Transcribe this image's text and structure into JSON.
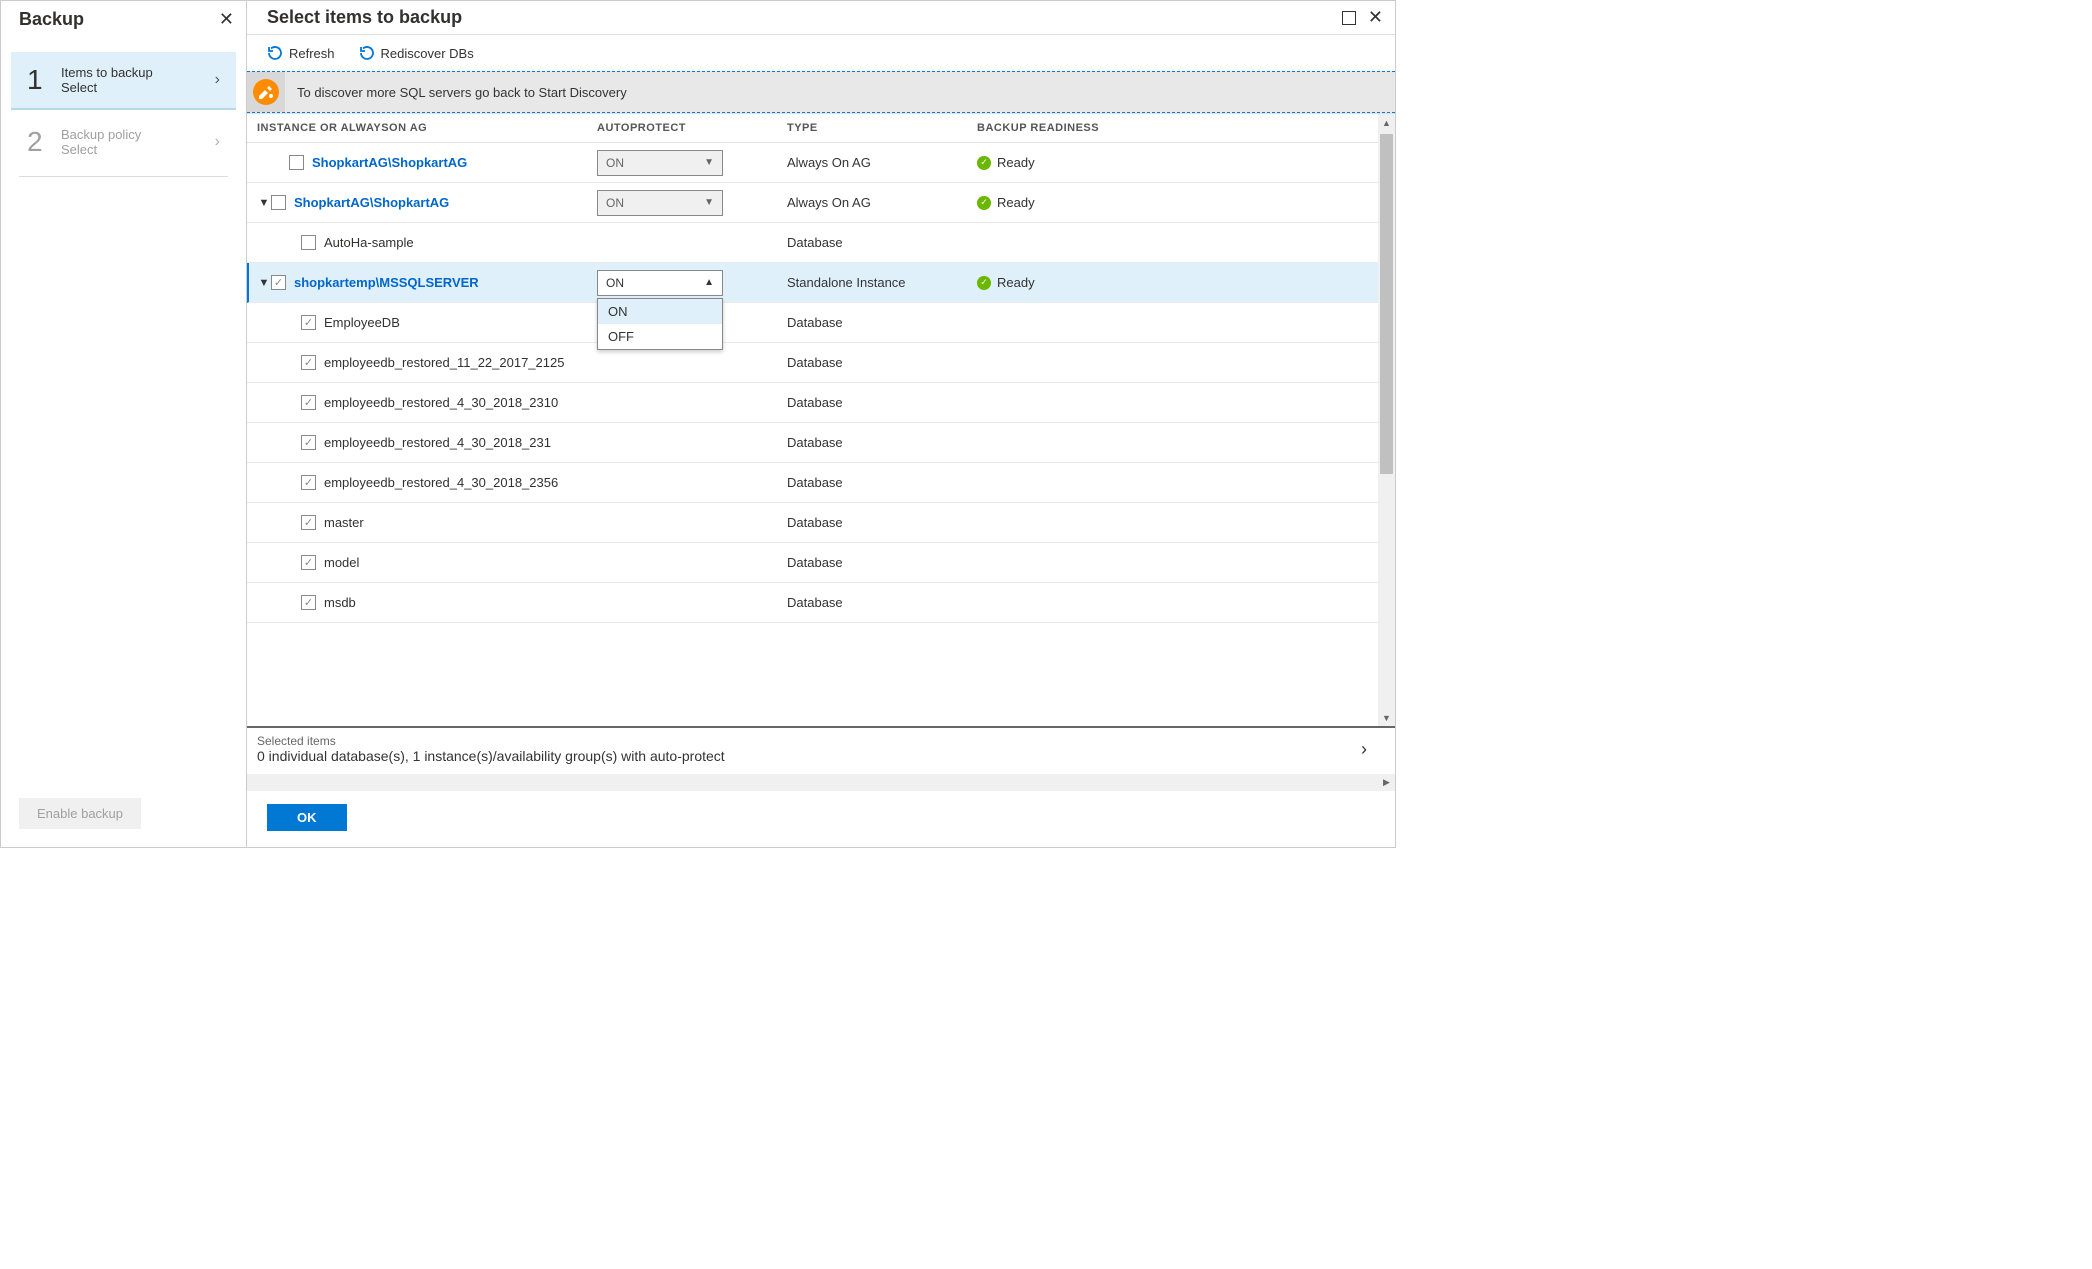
{
  "left": {
    "title": "Backup",
    "steps": [
      {
        "num": "1",
        "title": "Items to backup",
        "sub": "Select",
        "active": true
      },
      {
        "num": "2",
        "title": "Backup policy",
        "sub": "Select",
        "active": false
      }
    ],
    "enable_label": "Enable backup"
  },
  "right": {
    "title": "Select items to backup",
    "toolbar": {
      "refresh": "Refresh",
      "rediscover": "Rediscover DBs"
    },
    "banner": "To discover more SQL servers go back to Start Discovery",
    "columns": {
      "instance": "INSTANCE OR ALWAYSON AG",
      "autoprotect": "AUTOPROTECT",
      "type": "TYPE",
      "readiness": "BACKUP READINESS"
    },
    "autoprotect_options": {
      "on": "ON",
      "off": "OFF"
    },
    "rows": [
      {
        "expander": "",
        "indent": 0,
        "checked": false,
        "label": "ShopkartAG\\ShopkartAG",
        "link": true,
        "autoprotect": "ON",
        "autoprotect_open": false,
        "type": "Always On AG",
        "ready": "Ready",
        "selected": false
      },
      {
        "expander": "▼",
        "indent": 1,
        "checked": false,
        "label": "ShopkartAG\\ShopkartAG",
        "link": true,
        "autoprotect": "ON",
        "autoprotect_open": false,
        "type": "Always On AG",
        "ready": "Ready",
        "selected": false
      },
      {
        "expander": "",
        "indent": 2,
        "checked": false,
        "label": "AutoHa-sample",
        "link": false,
        "autoprotect": "",
        "type": "Database",
        "ready": "",
        "selected": false
      },
      {
        "expander": "▼",
        "indent": 1,
        "checked": true,
        "label": "shopkartemp\\MSSQLSERVER",
        "link": true,
        "autoprotect": "ON",
        "autoprotect_open": true,
        "type": "Standalone Instance",
        "ready": "Ready",
        "selected": true
      },
      {
        "expander": "",
        "indent": 2,
        "checked": true,
        "label": "EmployeeDB",
        "link": false,
        "autoprotect": "",
        "type": "Database",
        "ready": "",
        "selected": false
      },
      {
        "expander": "",
        "indent": 2,
        "checked": true,
        "label": "employeedb_restored_11_22_2017_2125",
        "link": false,
        "autoprotect": "",
        "type": "Database",
        "ready": "",
        "selected": false
      },
      {
        "expander": "",
        "indent": 2,
        "checked": true,
        "label": "employeedb_restored_4_30_2018_2310",
        "link": false,
        "autoprotect": "",
        "type": "Database",
        "ready": "",
        "selected": false
      },
      {
        "expander": "",
        "indent": 2,
        "checked": true,
        "label": "employeedb_restored_4_30_2018_231",
        "link": false,
        "autoprotect": "",
        "type": "Database",
        "ready": "",
        "selected": false
      },
      {
        "expander": "",
        "indent": 2,
        "checked": true,
        "label": "employeedb_restored_4_30_2018_2356",
        "link": false,
        "autoprotect": "",
        "type": "Database",
        "ready": "",
        "selected": false
      },
      {
        "expander": "",
        "indent": 2,
        "checked": true,
        "label": "master",
        "link": false,
        "autoprotect": "",
        "type": "Database",
        "ready": "",
        "selected": false
      },
      {
        "expander": "",
        "indent": 2,
        "checked": true,
        "label": "model",
        "link": false,
        "autoprotect": "",
        "type": "Database",
        "ready": "",
        "selected": false
      },
      {
        "expander": "",
        "indent": 2,
        "checked": true,
        "label": "msdb",
        "link": false,
        "autoprotect": "",
        "type": "Database",
        "ready": "",
        "selected": false
      }
    ],
    "summary": {
      "label": "Selected items",
      "detail": "0 individual database(s), 1 instance(s)/availability group(s) with auto-protect"
    },
    "ok_label": "OK"
  },
  "style": {
    "accent": "#0078d4",
    "link_color": "#0066cc",
    "selected_bg": "#e0f0fb",
    "ready_green": "#6bb700",
    "banner_icon_bg": "#ff8c00"
  }
}
